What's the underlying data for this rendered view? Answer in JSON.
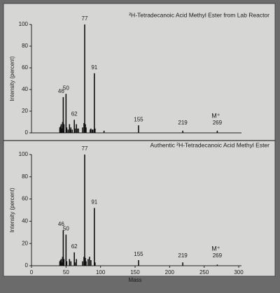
{
  "chart_data": [
    {
      "type": "stem",
      "title": "²H-Tetradecanoic Acid Methyl Ester from Lab Reactor",
      "ylabel": "Intensity (percent)",
      "x": [
        41,
        42,
        43,
        44,
        45,
        46,
        47,
        50,
        51,
        53,
        55,
        56,
        57,
        59,
        62,
        63,
        65,
        66,
        68,
        74,
        76,
        77,
        78,
        79,
        85,
        86,
        88,
        89,
        91,
        92,
        105,
        155,
        219,
        269
      ],
      "values": [
        5,
        6,
        8,
        4,
        10,
        33,
        8,
        36,
        5,
        3,
        8,
        3,
        5,
        3,
        12,
        4,
        8,
        4,
        4,
        5,
        9,
        100,
        8,
        5,
        3,
        4,
        3,
        3,
        55,
        4,
        2,
        7,
        2,
        2
      ],
      "color": "#111111",
      "xlim": [
        0,
        300
      ],
      "ylim": [
        0,
        100
      ],
      "yticks": [
        0,
        20,
        40,
        60,
        80,
        100
      ],
      "peak_labels": [
        46,
        50,
        62,
        77,
        91,
        155,
        219,
        269
      ],
      "annotation": "M⁺"
    },
    {
      "type": "stem",
      "title": "Authentic ²H-Tetradecanoic Acid Methyl Ester",
      "ylabel": "Intensity (percent)",
      "xlabel": "Mass",
      "x": [
        41,
        42,
        43,
        44,
        45,
        46,
        47,
        50,
        51,
        55,
        57,
        62,
        63,
        65,
        74,
        76,
        77,
        78,
        79,
        82,
        84,
        86,
        91,
        92,
        155,
        219,
        269
      ],
      "values": [
        4,
        5,
        6,
        3,
        8,
        32,
        6,
        28,
        4,
        6,
        4,
        12,
        3,
        6,
        4,
        8,
        100,
        7,
        4,
        6,
        8,
        5,
        52,
        3,
        5,
        3,
        1
      ],
      "color": "#111111",
      "xlim": [
        0,
        300
      ],
      "ylim": [
        0,
        100
      ],
      "yticks": [
        0,
        20,
        40,
        60,
        80,
        100
      ],
      "xticks": [
        0,
        50,
        100,
        150,
        200,
        250,
        300
      ],
      "peak_labels": [
        46,
        50,
        62,
        77,
        91,
        155,
        219,
        269
      ],
      "annotation": "M⁺"
    }
  ]
}
